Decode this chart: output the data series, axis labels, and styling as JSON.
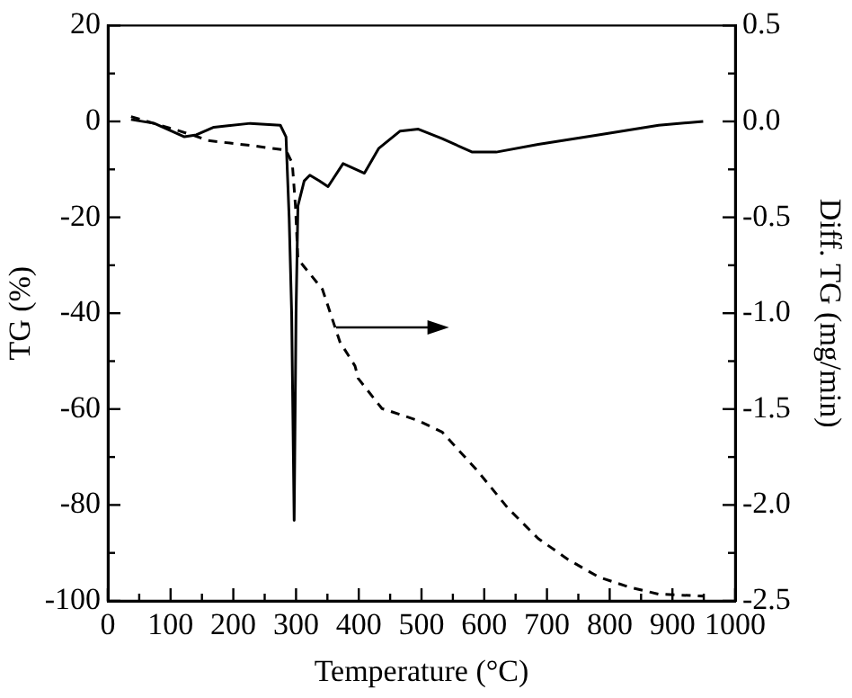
{
  "chart_data": {
    "type": "line",
    "xlabel": "Temperature (°C)",
    "ylabel": "TG (%)",
    "y2label": "Diff. TG (mg/min)",
    "xlim": [
      0,
      1000
    ],
    "xticks": [
      0,
      {
        "value": 50,
        "label": null
      },
      100,
      {
        "value": 150,
        "label": null
      },
      200,
      {
        "value": 250,
        "label": null
      },
      300,
      {
        "value": 350,
        "label": null
      },
      400,
      {
        "value": 450,
        "label": null
      },
      500,
      {
        "value": 550,
        "label": null
      },
      600,
      {
        "value": 650,
        "label": null
      },
      700,
      {
        "value": 750,
        "label": null
      },
      800,
      {
        "value": 850,
        "label": null
      },
      900,
      {
        "value": 950,
        "label": null
      },
      1000
    ],
    "ylim": [
      -100,
      20
    ],
    "yticks": [
      -100,
      {
        "value": -90,
        "label": null
      },
      -80,
      {
        "value": -70,
        "label": null
      },
      -60,
      {
        "value": -50,
        "label": null
      },
      -40,
      {
        "value": -30,
        "label": null
      },
      -20,
      {
        "value": -10,
        "label": null
      },
      0,
      {
        "value": 10,
        "label": null
      },
      20
    ],
    "y2lim": [
      -2.5,
      0.5
    ],
    "y2ticks": [
      {
        "value": -2.5,
        "label": "-2.5"
      },
      {
        "value": -2.25,
        "label": null
      },
      {
        "value": -2,
        "label": "-2.0"
      },
      {
        "value": -1.75,
        "label": null
      },
      {
        "value": -1.5,
        "label": "-1.5"
      },
      {
        "value": -1.25,
        "label": null
      },
      {
        "value": -1,
        "label": "-1.0"
      },
      {
        "value": -0.75,
        "label": null
      },
      {
        "value": -0.5,
        "label": "-0.5"
      },
      {
        "value": -0.25,
        "label": null
      },
      {
        "value": 0,
        "label": "0.0"
      },
      {
        "value": 0.25,
        "label": null
      },
      {
        "value": 0.5,
        "label": "0.5"
      }
    ],
    "grid": false,
    "legend": false,
    "marker": "none",
    "series": [
      {
        "color": "#000000",
        "line_style": "dashed",
        "x": [
          37,
          112,
          141,
          160,
          227,
          284,
          294,
          299,
          303,
          342,
          370,
          394,
          399,
          437,
          495,
          533,
          590,
          638,
          686,
          734,
          782,
          830,
          878,
          949
        ],
        "values": [
          1,
          -1.9,
          -3.1,
          -4,
          -5,
          -6,
          -8.7,
          -17.5,
          -28.7,
          -35,
          -46,
          -51,
          -53.6,
          -59.9,
          -62.4,
          -64.8,
          -73,
          -80.7,
          -87,
          -91.4,
          -95,
          -97.1,
          -98.6,
          -99
        ]
      },
      {
        "color": "#000000",
        "line_style": "solid",
        "axis": "y2",
        "x": [
          37,
          74,
          122,
          141,
          169,
          227,
          275,
          284,
          289,
          293,
          297,
          300,
          303,
          313,
          322,
          337,
          351,
          375,
          409,
          432,
          466,
          495,
          533,
          581,
          619,
          686,
          782,
          878,
          949
        ],
        "values": [
          0.01,
          -0.01,
          -0.08,
          -0.07,
          -0.03,
          -0.01,
          -0.02,
          -0.08,
          -0.5,
          -1.0,
          -2.08,
          -1.0,
          -0.44,
          -0.31,
          -0.28,
          -0.31,
          -0.34,
          -0.22,
          -0.27,
          -0.14,
          -0.05,
          -0.04,
          -0.09,
          -0.16,
          -0.16,
          -0.12,
          -0.07,
          -0.02,
          0
        ]
      }
    ]
  }
}
